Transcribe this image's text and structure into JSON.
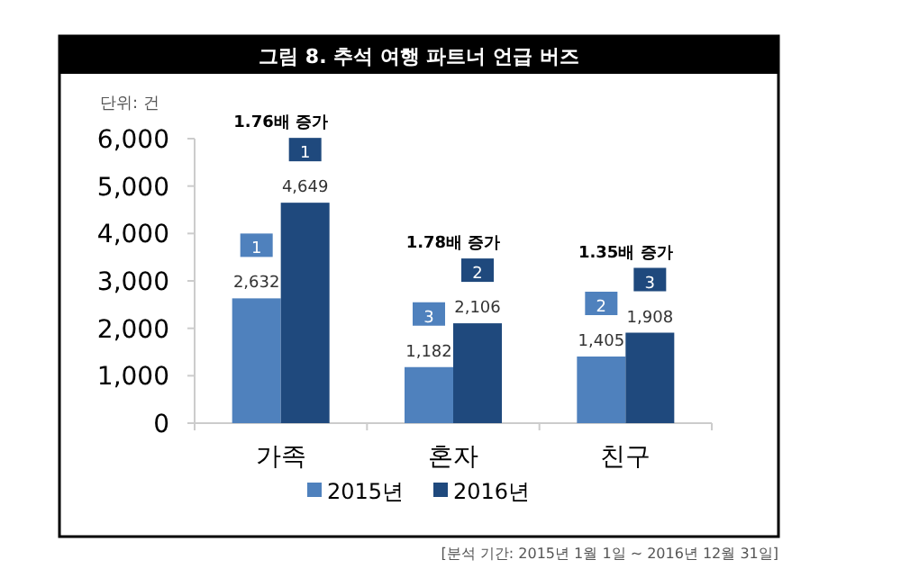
{
  "chart_data": {
    "type": "bar",
    "title": "그림 8. 추석 여행 파트너 언급 버즈",
    "ylabel": "단위: 건",
    "categories": [
      "가족",
      "혼자",
      "친구"
    ],
    "series": [
      {
        "name": "2015년",
        "color": "#4f81bd",
        "values": [
          2632,
          1182,
          1405
        ]
      },
      {
        "name": "2016년",
        "color": "#1f497d",
        "values": [
          4649,
          2106,
          1908
        ]
      }
    ],
    "ylim": [
      0,
      6000
    ],
    "yticks": [
      0,
      {
        "value": 1000,
        "label": "1,000"
      },
      {
        "value": 2000,
        "label": "2,000"
      },
      {
        "value": 3000,
        "label": "3,000"
      },
      {
        "value": 4000,
        "label": "4,000"
      },
      {
        "value": 5000,
        "label": "5,000"
      },
      {
        "value": 6000,
        "label": "6,000"
      }
    ],
    "value_labels": [
      [
        "2,632",
        "1,182",
        "1,405"
      ],
      [
        "4,649",
        "2,106",
        "1,908"
      ]
    ],
    "annotations": [
      "1.76배 증가",
      "1.78배 증가",
      "1.35배 증가",
      {
        "text": "1",
        "x": "가족",
        "y": 2632
      },
      {
        "text": "3",
        "x": "혼자",
        "y": 1182
      },
      {
        "text": "2",
        "x": "친구",
        "y": 1405
      },
      {
        "text": "1",
        "x": "가족",
        "y": 4649
      },
      {
        "text": "2",
        "x": "혼자",
        "y": 2106
      },
      {
        "text": "3",
        "x": "친구",
        "y": 1908
      },
      "[분석 기간: 2015년 1월 1일 ~ 2016년 12월 31일]"
    ],
    "legend": "bottom"
  }
}
